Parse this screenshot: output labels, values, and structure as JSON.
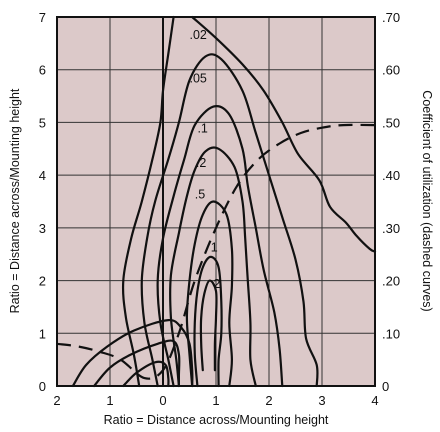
{
  "chart_data": {
    "type": "line",
    "xlabel": "Ratio = Distance across/Mounting height",
    "ylabel_left": "Ratio = Distance across/Mounting height",
    "ylabel_right": "Coefficient of utilization (dashed curves)",
    "xlim": [
      -2,
      4
    ],
    "ylim_left": [
      0,
      7
    ],
    "ylim_right": [
      0,
      0.7
    ],
    "x_ticks": [
      -2,
      -1,
      0,
      1,
      2,
      3,
      4
    ],
    "x_tick_labels": [
      "2",
      "1",
      "0",
      "1",
      "2",
      "3",
      "4"
    ],
    "y_ticks_left": [
      0,
      1,
      2,
      3,
      4,
      5,
      6,
      7
    ],
    "y_tick_labels_left": [
      "0",
      "1",
      "2",
      "3",
      "4",
      "5",
      "6",
      "7"
    ],
    "y_ticks_right": [
      0,
      0.1,
      0.2,
      0.3,
      0.4,
      0.5,
      0.6,
      0.7
    ],
    "y_tick_labels_right": [
      "0",
      ".10",
      ".20",
      ".30",
      ".40",
      ".50",
      ".60",
      ".70"
    ],
    "grid": true,
    "plot_background": "#dcc9c9",
    "line_color": "#111111",
    "series": [
      {
        "label": ".02",
        "style": "solid",
        "label_at": [
          0.5,
          6.68
        ],
        "points": [
          [
            -0.45,
            0
          ],
          [
            -0.55,
            0.6
          ],
          [
            -0.7,
            1.3
          ],
          [
            -0.75,
            2.0
          ],
          [
            -0.6,
            2.8
          ],
          [
            -0.4,
            3.5
          ],
          [
            -0.2,
            4.3
          ],
          [
            -0.05,
            5.0
          ],
          [
            0.0,
            5.6
          ],
          [
            0.1,
            6.3
          ],
          [
            0.2,
            7.0
          ]
        ]
      },
      {
        "label": ".02",
        "style": "solid",
        "points": [
          [
            0.55,
            7.0
          ],
          [
            1.0,
            6.6
          ],
          [
            1.5,
            6.1
          ],
          [
            1.9,
            5.6
          ],
          [
            2.25,
            5.0
          ],
          [
            2.55,
            4.4
          ],
          [
            2.95,
            3.9
          ],
          [
            3.15,
            3.4
          ],
          [
            3.45,
            3.1
          ],
          [
            3.65,
            2.85
          ],
          [
            3.9,
            2.6
          ],
          [
            4.0,
            2.55
          ]
        ]
      },
      {
        "label": ".05",
        "style": "solid",
        "label_at": [
          0.5,
          5.85
        ],
        "points": [
          [
            -0.1,
            0
          ],
          [
            -0.2,
            0.5
          ],
          [
            -0.35,
            1.2
          ],
          [
            -0.4,
            2.0
          ],
          [
            -0.3,
            2.8
          ],
          [
            -0.15,
            3.5
          ],
          [
            0.1,
            4.3
          ],
          [
            0.3,
            5.0
          ],
          [
            0.5,
            5.8
          ],
          [
            0.8,
            6.25
          ],
          [
            1.1,
            6.2
          ],
          [
            1.5,
            5.6
          ],
          [
            1.75,
            4.8
          ],
          [
            2.0,
            4.0
          ],
          [
            2.25,
            3.2
          ],
          [
            2.5,
            2.4
          ],
          [
            2.65,
            1.6
          ],
          [
            2.7,
            0.9
          ],
          [
            2.9,
            0.4
          ],
          [
            2.9,
            0
          ]
        ]
      },
      {
        "label": ".1",
        "style": "solid",
        "label_at": [
          0.65,
          4.9
        ],
        "points": [
          [
            0.2,
            0
          ],
          [
            0.1,
            0.5
          ],
          [
            -0.05,
            1.2
          ],
          [
            -0.1,
            2.0
          ],
          [
            0.0,
            2.8
          ],
          [
            0.2,
            3.6
          ],
          [
            0.4,
            4.3
          ],
          [
            0.6,
            4.95
          ],
          [
            0.95,
            5.3
          ],
          [
            1.25,
            5.15
          ],
          [
            1.5,
            4.5
          ],
          [
            1.6,
            3.8
          ],
          [
            1.75,
            3.0
          ],
          [
            1.9,
            2.2
          ],
          [
            2.1,
            1.4
          ],
          [
            2.2,
            0.7
          ],
          [
            2.25,
            0
          ]
        ]
      },
      {
        "label": ".2",
        "style": "solid",
        "label_at": [
          0.62,
          4.25
        ],
        "points": [
          [
            0.3,
            0
          ],
          [
            0.25,
            0.5
          ],
          [
            0.15,
            1.3
          ],
          [
            0.15,
            2.1
          ],
          [
            0.3,
            2.9
          ],
          [
            0.45,
            3.6
          ],
          [
            0.6,
            4.1
          ],
          [
            0.8,
            4.45
          ],
          [
            1.05,
            4.5
          ],
          [
            1.35,
            4.15
          ],
          [
            1.5,
            3.5
          ],
          [
            1.55,
            2.8
          ],
          [
            1.6,
            2.0
          ],
          [
            1.65,
            1.2
          ],
          [
            1.65,
            0.5
          ],
          [
            1.75,
            0
          ]
        ]
      },
      {
        "label": ".5",
        "style": "solid",
        "label_at": [
          0.6,
          3.65
        ],
        "points": [
          [
            0.55,
            0
          ],
          [
            0.5,
            0.6
          ],
          [
            0.45,
            1.3
          ],
          [
            0.5,
            2.0
          ],
          [
            0.6,
            2.7
          ],
          [
            0.75,
            3.25
          ],
          [
            0.95,
            3.5
          ],
          [
            1.2,
            3.25
          ],
          [
            1.3,
            2.6
          ],
          [
            1.3,
            1.9
          ],
          [
            1.25,
            1.2
          ],
          [
            1.3,
            0.5
          ],
          [
            1.25,
            0
          ]
        ]
      },
      {
        "label": "1",
        "style": "solid",
        "label_at": [
          0.9,
          2.65
        ],
        "points": [
          [
            0.65,
            0
          ],
          [
            0.6,
            0.6
          ],
          [
            0.6,
            1.2
          ],
          [
            0.65,
            1.8
          ],
          [
            0.75,
            2.25
          ],
          [
            0.9,
            2.45
          ],
          [
            1.05,
            2.25
          ],
          [
            1.1,
            1.6
          ],
          [
            1.1,
            1.0
          ],
          [
            1.05,
            0.5
          ],
          [
            1.05,
            0
          ]
        ]
      },
      {
        "label": "2",
        "style": "solid",
        "label_at": [
          0.95,
          1.95
        ],
        "points": [
          [
            0.75,
            0.3
          ],
          [
            0.72,
            0.8
          ],
          [
            0.72,
            1.3
          ],
          [
            0.78,
            1.75
          ],
          [
            0.88,
            2.0
          ],
          [
            1.0,
            1.8
          ],
          [
            1.0,
            1.3
          ],
          [
            0.98,
            0.8
          ],
          [
            0.98,
            0.3
          ]
        ]
      },
      {
        "label": "",
        "style": "solid",
        "points": [
          [
            -1.7,
            0
          ],
          [
            -1.45,
            0.4
          ],
          [
            -1.05,
            0.75
          ],
          [
            -0.55,
            1.05
          ],
          [
            0.1,
            1.25
          ],
          [
            0.35,
            1.1
          ],
          [
            0.5,
            0.8
          ],
          [
            0.55,
            0.3
          ],
          [
            0.55,
            0
          ]
        ]
      },
      {
        "label": "",
        "style": "solid",
        "points": [
          [
            -1.3,
            0
          ],
          [
            -1.0,
            0.35
          ],
          [
            -0.6,
            0.6
          ],
          [
            -0.1,
            0.8
          ],
          [
            0.2,
            0.85
          ],
          [
            0.3,
            0.6
          ],
          [
            0.3,
            0.2
          ],
          [
            0.3,
            0
          ]
        ]
      },
      {
        "label": "",
        "style": "solid",
        "points": [
          [
            -0.75,
            0
          ],
          [
            -0.5,
            0.25
          ],
          [
            -0.15,
            0.45
          ],
          [
            0.05,
            0.4
          ],
          [
            0.1,
            0.15
          ],
          [
            0.1,
            0
          ]
        ]
      },
      {
        "label": "coefficient of utilization",
        "style": "dashed",
        "axis": "right",
        "points": [
          [
            -2.0,
            0.08
          ],
          [
            -1.6,
            0.075
          ],
          [
            -1.2,
            0.065
          ],
          [
            -0.8,
            0.05
          ],
          [
            -0.35,
            0.015
          ],
          [
            0.0,
            0.03
          ],
          [
            0.3,
            0.1
          ],
          [
            0.6,
            0.2
          ],
          [
            1.0,
            0.3
          ],
          [
            1.4,
            0.38
          ],
          [
            1.8,
            0.43
          ],
          [
            2.2,
            0.46
          ],
          [
            2.6,
            0.48
          ],
          [
            3.0,
            0.49
          ],
          [
            3.4,
            0.495
          ],
          [
            4.0,
            0.495
          ]
        ]
      }
    ]
  }
}
